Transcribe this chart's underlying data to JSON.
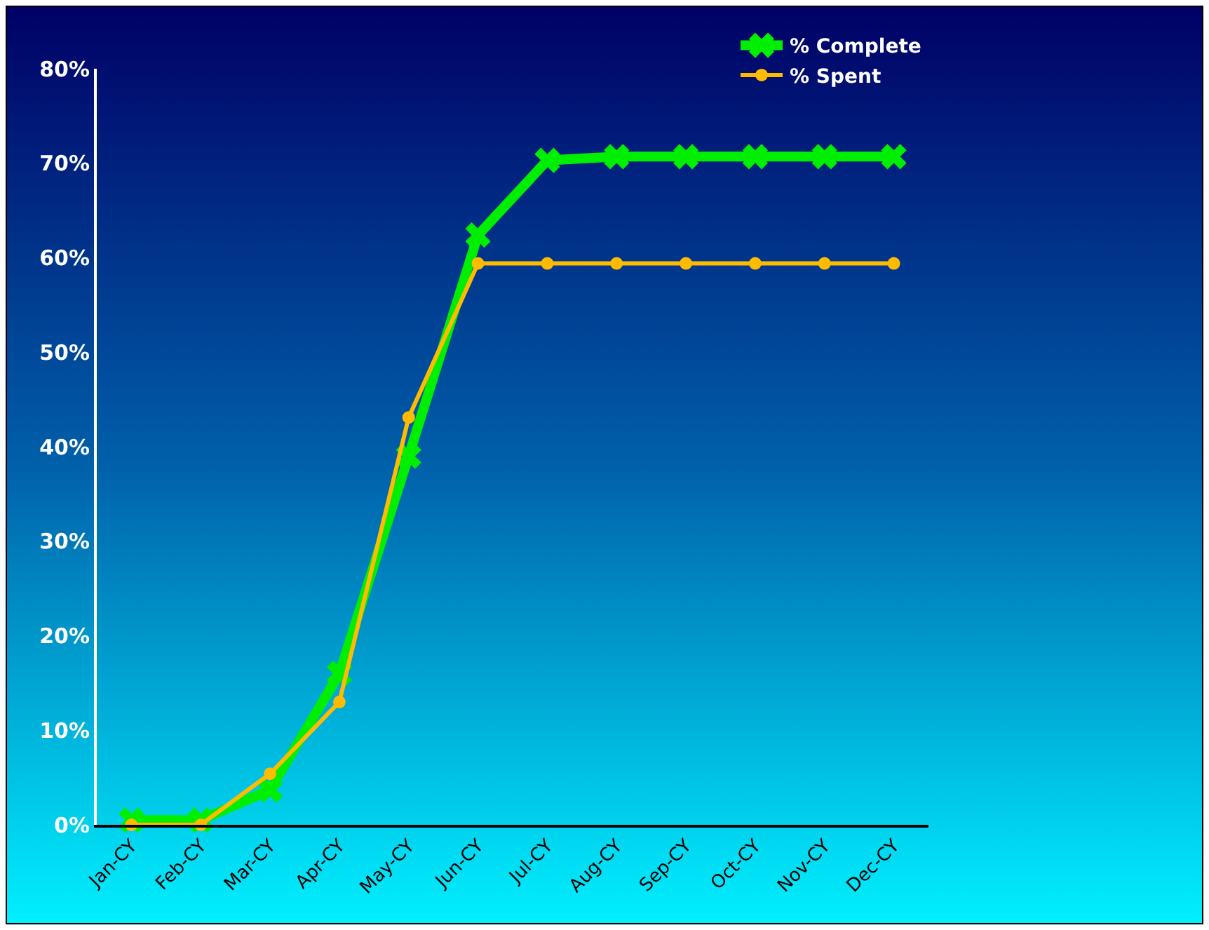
{
  "chart_data": {
    "type": "line",
    "categories": [
      "Jan-CY",
      "Feb-CY",
      "Mar-CY",
      "Apr-CY",
      "May-CY",
      "Jun-CY",
      "Jul-CY",
      "Aug-CY",
      "Sep-CY",
      "Oct-CY",
      "Nov-CY",
      "Dec-CY"
    ],
    "series": [
      {
        "name": "% Complete",
        "color": "#00ee00",
        "marker": "cross",
        "values": [
          0.5,
          0.5,
          3.7,
          16,
          39,
          62.4,
          70.3,
          70.7,
          70.7,
          70.7,
          70.7,
          70.7
        ]
      },
      {
        "name": "% Spent",
        "color": "#ffbb00",
        "marker": "circle",
        "values": [
          0,
          0,
          5.4,
          13,
          43.1,
          59.4,
          59.4,
          59.4,
          59.4,
          59.4,
          59.4,
          59.4
        ]
      }
    ],
    "ylim": [
      0,
      80
    ],
    "yticks": [
      {
        "value": 0,
        "label": "0%"
      },
      {
        "value": 10,
        "label": "10%"
      },
      {
        "value": 20,
        "label": "20%"
      },
      {
        "value": 30,
        "label": "30%"
      },
      {
        "value": 40,
        "label": "40%"
      },
      {
        "value": 50,
        "label": "50%"
      },
      {
        "value": 60,
        "label": "60%"
      },
      {
        "value": 70,
        "label": "70%"
      },
      {
        "value": 80,
        "label": "80%"
      }
    ],
    "grid": false,
    "legend": "top right",
    "line_style": "solid"
  }
}
